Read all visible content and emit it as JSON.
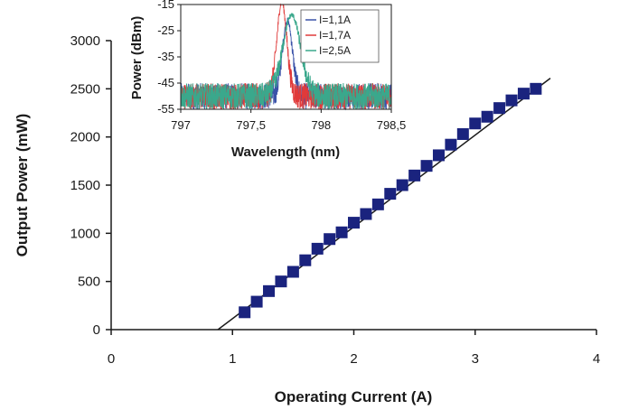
{
  "chart_data": [
    {
      "type": "scatter",
      "xlabel": "Operating Current (A)",
      "ylabel": "Output Power (mW)",
      "xlim": [
        0,
        4
      ],
      "ylim": [
        0,
        3000
      ],
      "xticks": [
        "0",
        "1",
        "2",
        "3",
        "4"
      ],
      "yticks": [
        "0",
        "500",
        "1000",
        "1500",
        "2000",
        "2500",
        "3000"
      ],
      "grid": false,
      "marker_color": "#1a237e",
      "series": [
        {
          "type": "scatter",
          "marker": "square",
          "x": [
            1.1,
            1.2,
            1.3,
            1.4,
            1.5,
            1.6,
            1.7,
            1.8,
            1.9,
            2.0,
            2.1,
            2.2,
            2.3,
            2.4,
            2.5,
            2.6,
            2.7,
            2.8,
            2.9,
            3.0,
            3.1,
            3.2,
            3.3,
            3.4,
            3.5
          ],
          "y": [
            180,
            290,
            400,
            500,
            600,
            720,
            840,
            940,
            1010,
            1110,
            1200,
            1300,
            1410,
            1500,
            1600,
            1700,
            1810,
            1920,
            2030,
            2140,
            2210,
            2300,
            2380,
            2450,
            2500
          ]
        },
        {
          "type": "line",
          "x": [
            0.88,
            3.62
          ],
          "y": [
            0,
            2610
          ]
        }
      ]
    },
    {
      "type": "line",
      "xlabel": "Wavelength (nm)",
      "ylabel": "Power (dBm)",
      "xlim": [
        797,
        798.5
      ],
      "ylim": [
        -55,
        -15
      ],
      "xticks": [
        "797",
        "797,5",
        "798",
        "798,5"
      ],
      "yticks": [
        "-15",
        "-25",
        "-35",
        "-45",
        "-55"
      ],
      "legend": "top-right",
      "series": [
        {
          "name": "I=1,1A",
          "color": "#3a52a8",
          "peak_x": 797.76,
          "peak_y": -21,
          "width": 0.05
        },
        {
          "name": "I=1,7A",
          "color": "#e03a3a",
          "peak_x": 797.72,
          "peak_y": -14,
          "width": 0.05
        },
        {
          "name": "I=2,5A",
          "color": "#3aa88c",
          "peak_x": 797.79,
          "peak_y": -19,
          "width": 0.09
        }
      ]
    }
  ]
}
